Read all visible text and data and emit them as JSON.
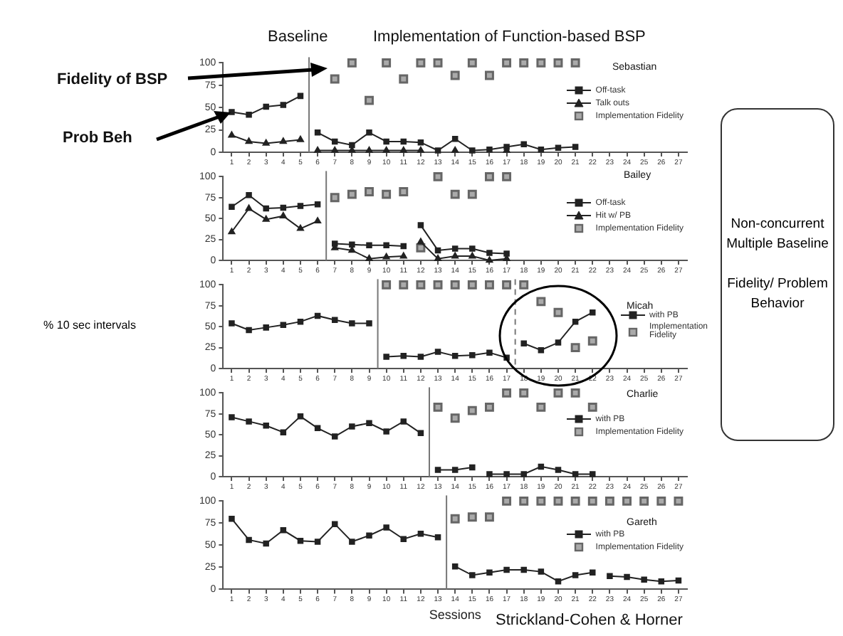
{
  "chart_data": [
    {
      "type": "line",
      "annotations": [
        "Sebastian",
        "Baseline",
        "Implementation of Function-based BSP",
        "Fidelity of BSP",
        "Prob Beh"
      ],
      "xlim": [
        0.5,
        27.5
      ],
      "xticks": [
        1,
        2,
        3,
        4,
        5,
        6,
        7,
        8,
        9,
        10,
        11,
        12,
        13,
        14,
        15,
        16,
        17,
        18,
        19,
        20,
        21,
        22,
        23,
        24,
        25,
        26,
        27
      ],
      "ylim": [
        0,
        100
      ],
      "yticks": [
        0,
        25,
        50,
        75,
        100
      ],
      "grid": false,
      "legend": "right",
      "ref_lines": [
        {
          "axis": "x",
          "value": 5.5,
          "color": "#777777",
          "line_style": "solid"
        }
      ],
      "series": [
        {
          "name": "Off-task",
          "type": "line",
          "marker": "square",
          "color": "#222222",
          "x": [
            1,
            2,
            3,
            4,
            5
          ],
          "values": [
            45,
            42,
            51,
            53,
            63
          ]
        },
        {
          "type": "line",
          "marker": "square",
          "color": "#222222",
          "x": [
            6,
            7,
            8,
            9,
            10,
            11,
            12,
            13,
            14,
            15,
            16,
            17,
            18,
            19,
            20,
            21
          ],
          "values": [
            22,
            12,
            8,
            22,
            12,
            12,
            11,
            2,
            15,
            2,
            3,
            6,
            9,
            3,
            5,
            6
          ]
        },
        {
          "name": "Talk outs",
          "type": "line",
          "marker": "triangle",
          "color": "#222222",
          "x": [
            1,
            2,
            3,
            4,
            5
          ],
          "values": [
            19,
            12,
            10,
            12,
            14
          ]
        },
        {
          "type": "line",
          "marker": "triangle",
          "color": "#222222",
          "x": [
            6,
            7,
            8,
            9,
            10,
            11,
            12,
            13,
            14,
            15,
            16,
            17
          ],
          "values": [
            2,
            2,
            2,
            2,
            2,
            2,
            2,
            null,
            2,
            null,
            null,
            2
          ]
        },
        {
          "name": "Implementation Fidelity",
          "type": "scatter",
          "marker": "square",
          "color": "#666666",
          "x": [
            7,
            8,
            9,
            10,
            11,
            12,
            13,
            14,
            15,
            16,
            17,
            18,
            19,
            20,
            21
          ],
          "values": [
            82,
            100,
            58,
            100,
            82,
            100,
            100,
            86,
            100,
            86,
            100,
            100,
            100,
            100,
            100
          ]
        }
      ]
    },
    {
      "type": "line",
      "annotations": [
        "Bailey"
      ],
      "xlim": [
        0.5,
        27.5
      ],
      "xticks": [
        1,
        2,
        3,
        4,
        5,
        6,
        7,
        8,
        9,
        10,
        11,
        12,
        13,
        14,
        15,
        16,
        17,
        18,
        19,
        20,
        21,
        22,
        23,
        24,
        25,
        26,
        27
      ],
      "ylim": [
        0,
        100
      ],
      "yticks": [
        0,
        25,
        50,
        75,
        100
      ],
      "grid": false,
      "legend": "right",
      "ref_lines": [
        {
          "axis": "x",
          "value": 6.5,
          "color": "#777777",
          "line_style": "solid"
        }
      ],
      "series": [
        {
          "name": "Off-task",
          "type": "line",
          "marker": "square",
          "color": "#222222",
          "x": [
            1,
            2,
            3,
            4,
            5,
            6
          ],
          "values": [
            64,
            78,
            62,
            63,
            65,
            67
          ]
        },
        {
          "type": "line",
          "marker": "square",
          "color": "#222222",
          "x": [
            7,
            8,
            9,
            10,
            11
          ],
          "values": [
            20,
            19,
            18,
            18,
            17
          ]
        },
        {
          "type": "line",
          "marker": "square",
          "color": "#222222",
          "x": [
            12,
            13,
            14,
            15,
            16,
            17
          ],
          "values": [
            42,
            12,
            14,
            14,
            9,
            8
          ]
        },
        {
          "name": "Hit w/ PB",
          "type": "line",
          "marker": "triangle",
          "color": "#222222",
          "x": [
            1,
            2,
            3,
            4,
            5,
            6
          ],
          "values": [
            34,
            62,
            49,
            53,
            38,
            47
          ]
        },
        {
          "type": "line",
          "marker": "triangle",
          "color": "#222222",
          "x": [
            7,
            8,
            9,
            10,
            11
          ],
          "values": [
            15,
            12,
            2,
            4,
            5
          ]
        },
        {
          "type": "line",
          "marker": "triangle",
          "color": "#222222",
          "x": [
            12,
            13,
            14,
            15,
            16,
            17
          ],
          "values": [
            22,
            2,
            5,
            5,
            0,
            2
          ]
        },
        {
          "name": "Implementation Fidelity",
          "type": "scatter",
          "marker": "square",
          "color": "#666666",
          "x": [
            7,
            8,
            9,
            10,
            11,
            12,
            13,
            14,
            15,
            16,
            17
          ],
          "values": [
            75,
            79,
            82,
            79,
            82,
            15,
            100,
            79,
            79,
            100,
            100
          ]
        }
      ]
    },
    {
      "type": "line",
      "annotations": [
        "Micah"
      ],
      "ylabel": "% 10 sec intervals",
      "xlim": [
        0.5,
        27.5
      ],
      "xticks": [
        1,
        2,
        3,
        4,
        5,
        6,
        7,
        8,
        9,
        10,
        11,
        12,
        13,
        14,
        15,
        16,
        17,
        18,
        19,
        20,
        21,
        22,
        23,
        24,
        25,
        26,
        27
      ],
      "ylim": [
        0,
        100
      ],
      "yticks": [
        0,
        25,
        50,
        75,
        100
      ],
      "grid": false,
      "legend": "right",
      "ref_lines": [
        {
          "axis": "x",
          "value": 9.5,
          "color": "#777777",
          "line_style": "solid"
        },
        {
          "axis": "x",
          "value": 17.5,
          "color": "#777777",
          "line_style": "dashed"
        }
      ],
      "series": [
        {
          "name": "with PB",
          "type": "line",
          "marker": "square",
          "color": "#222222",
          "x": [
            1,
            2,
            3,
            4,
            5,
            6,
            7,
            8,
            9
          ],
          "values": [
            54,
            46,
            49,
            52,
            56,
            63,
            58,
            54,
            54
          ]
        },
        {
          "type": "line",
          "marker": "square",
          "color": "#222222",
          "x": [
            10,
            11,
            12,
            13,
            14,
            15,
            16,
            17
          ],
          "values": [
            14,
            15,
            14,
            20,
            15,
            16,
            19,
            13
          ]
        },
        {
          "type": "line",
          "marker": "square",
          "color": "#222222",
          "x": [
            18,
            19,
            20,
            21,
            22
          ],
          "values": [
            30,
            22,
            31,
            56,
            67
          ]
        },
        {
          "name": "Implementation Fidelity",
          "type": "scatter",
          "marker": "square",
          "color": "#666666",
          "x": [
            10,
            11,
            12,
            13,
            14,
            15,
            16,
            17,
            18,
            19,
            20,
            21,
            22
          ],
          "values": [
            100,
            100,
            100,
            100,
            100,
            100,
            100,
            100,
            100,
            80,
            67,
            25,
            33
          ]
        }
      ]
    },
    {
      "type": "line",
      "annotations": [
        "Charlie"
      ],
      "xlim": [
        0.5,
        27.5
      ],
      "xticks": [
        1,
        2,
        3,
        4,
        5,
        6,
        7,
        8,
        9,
        10,
        11,
        12,
        13,
        14,
        15,
        16,
        17,
        18,
        19,
        20,
        21,
        22,
        23,
        24,
        25,
        26,
        27
      ],
      "ylim": [
        0,
        100
      ],
      "yticks": [
        0,
        25,
        50,
        75,
        100
      ],
      "grid": false,
      "legend": "right",
      "ref_lines": [
        {
          "axis": "x",
          "value": 12.5,
          "color": "#777777",
          "line_style": "solid"
        }
      ],
      "series": [
        {
          "name": "with PB",
          "type": "line",
          "marker": "square",
          "color": "#222222",
          "x": [
            1,
            2,
            3,
            4,
            5,
            6,
            7,
            8,
            9,
            10,
            11,
            12
          ],
          "values": [
            71,
            66,
            61,
            53,
            72,
            58,
            48,
            60,
            64,
            54,
            66,
            52
          ]
        },
        {
          "type": "line",
          "marker": "square",
          "color": "#222222",
          "x": [
            13,
            14,
            15
          ],
          "values": [
            8,
            8,
            11
          ]
        },
        {
          "type": "line",
          "marker": "square",
          "color": "#222222",
          "x": [
            16,
            17,
            18,
            19,
            20,
            21,
            22
          ],
          "values": [
            3,
            3,
            3,
            12,
            8,
            3,
            3
          ]
        },
        {
          "name": "Implementation Fidelity",
          "type": "scatter",
          "marker": "square",
          "color": "#666666",
          "x": [
            13,
            14,
            15,
            16,
            17,
            18,
            19,
            20,
            21,
            22
          ],
          "values": [
            83,
            70,
            79,
            83,
            100,
            100,
            83,
            100,
            100,
            83
          ]
        }
      ]
    },
    {
      "type": "line",
      "annotations": [
        "Gareth",
        "Strickland-Cohen & Horner"
      ],
      "xlabel": "Sessions",
      "xlim": [
        0.5,
        27.5
      ],
      "xticks": [
        1,
        2,
        3,
        4,
        5,
        6,
        7,
        8,
        9,
        10,
        11,
        12,
        13,
        14,
        15,
        16,
        17,
        18,
        19,
        20,
        21,
        22,
        23,
        24,
        25,
        26,
        27
      ],
      "ylim": [
        0,
        100
      ],
      "yticks": [
        0,
        25,
        50,
        75,
        100
      ],
      "grid": false,
      "legend": "right",
      "ref_lines": [
        {
          "axis": "x",
          "value": 13.5,
          "color": "#777777",
          "line_style": "solid"
        }
      ],
      "series": [
        {
          "name": "with PB",
          "type": "line",
          "marker": "square",
          "color": "#222222",
          "x": [
            1,
            2,
            3,
            4,
            5,
            6,
            7,
            8,
            9,
            10,
            11,
            12,
            13
          ],
          "values": [
            80,
            56,
            52,
            67,
            55,
            54,
            74,
            54,
            61,
            70,
            57,
            63,
            59
          ]
        },
        {
          "type": "line",
          "marker": "square",
          "color": "#222222",
          "x": [
            14,
            15,
            16,
            17,
            18,
            19,
            20,
            21,
            22
          ],
          "values": [
            26,
            16,
            19,
            22,
            22,
            20,
            9,
            16,
            19
          ]
        },
        {
          "type": "line",
          "marker": "square",
          "color": "#222222",
          "x": [
            23,
            24,
            25,
            26,
            27
          ],
          "values": [
            15,
            14,
            11,
            9,
            10
          ]
        },
        {
          "name": "Implementation Fidelity",
          "type": "scatter",
          "marker": "square",
          "color": "#666666",
          "x": [
            14,
            15,
            16,
            17,
            18,
            19,
            20,
            21,
            22,
            23,
            24,
            25,
            26,
            27
          ],
          "values": [
            80,
            82,
            82,
            100,
            100,
            100,
            100,
            100,
            100,
            100,
            100,
            100,
            100,
            100
          ]
        }
      ]
    },
    {
      "type": "other",
      "annotations": [
        "Non-concurrent Multiple Baseline",
        "Fidelity/ Problem Behavior"
      ]
    }
  ]
}
